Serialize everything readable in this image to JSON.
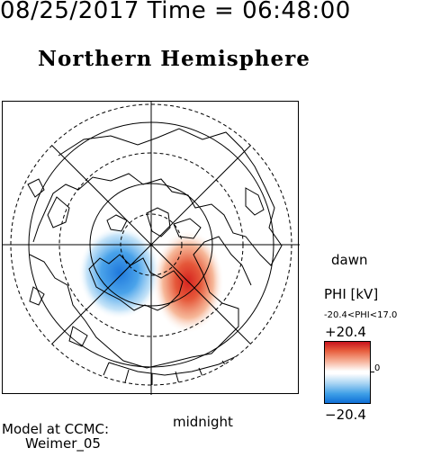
{
  "header": {
    "date": "08/25/2017",
    "time_text": "Time = 06:48:00"
  },
  "title": "Northern Hemisphere",
  "labels": {
    "dawn": "dawn",
    "midnight": "midnight"
  },
  "legend": {
    "title": "PHI [kV]",
    "range": "-20.4<PHI<17.0",
    "max": "+20.4",
    "min": "−20.4",
    "zero": "0",
    "colors": {
      "positive": "#c9141e",
      "negative": "#0f6fd6",
      "neutral": "#ffffff"
    }
  },
  "model": {
    "line1": "Model at CCMC:",
    "line2": "Weimer_05"
  }
}
